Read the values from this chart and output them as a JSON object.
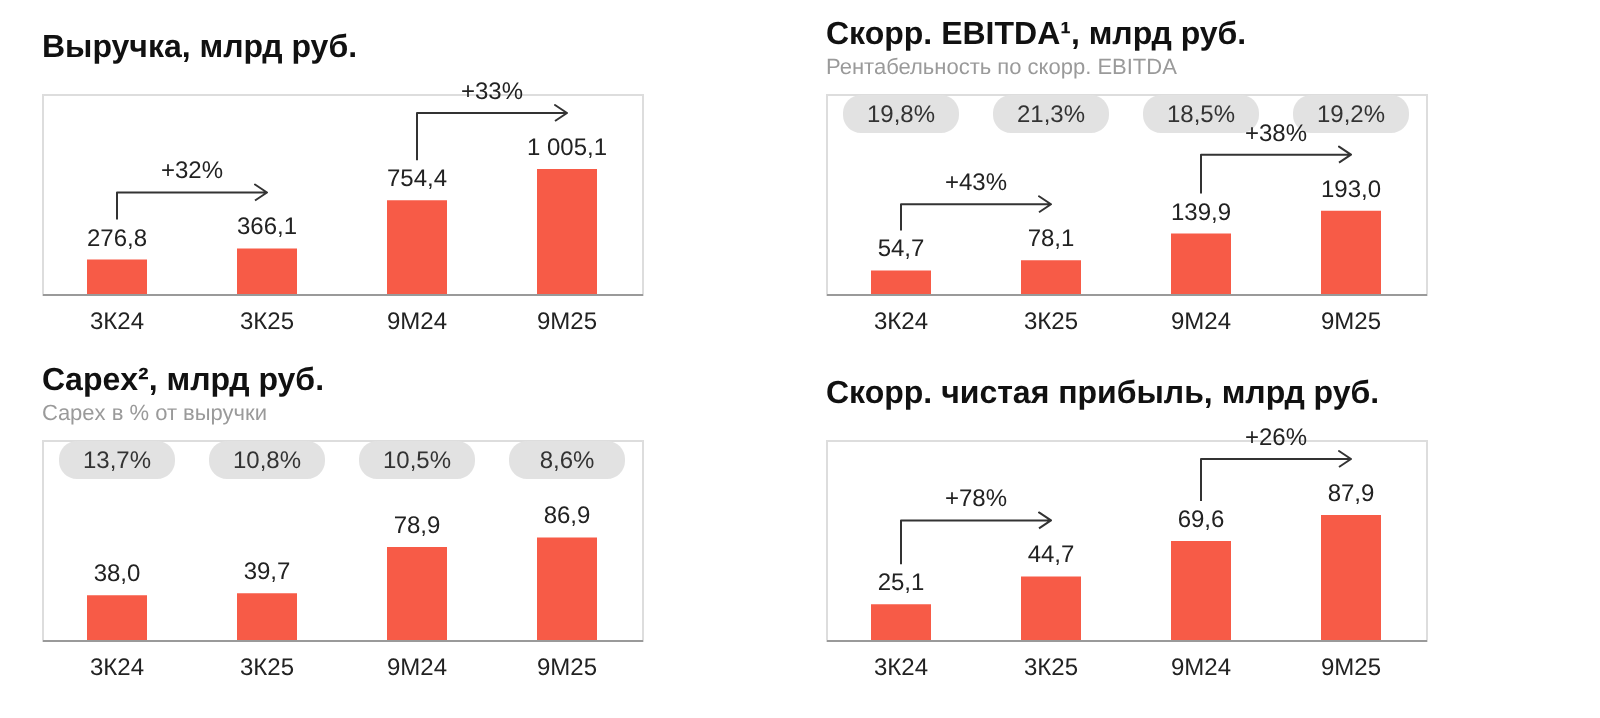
{
  "chart_data": [
    {
      "type": "bar",
      "title": "Выручка, млрд руб.",
      "categories": [
        "3К24",
        "3К25",
        "9М24",
        "9М25"
      ],
      "values": [
        276.8,
        366.1,
        754.4,
        1005.1
      ],
      "color": "#f75b47",
      "data_labels": true,
      "value_labels": [
        "276,8",
        "366,1",
        "754,4",
        "1 005,1"
      ],
      "annotations": [
        "+32%",
        "+33%"
      ]
    },
    {
      "type": "bar",
      "title": "Скорр. EBITDA¹, млрд руб.",
      "subtitle": "Рентабельность по скорр. EBITDA",
      "categories": [
        "3К24",
        "3К25",
        "9М24",
        "9М25"
      ],
      "values": [
        54.7,
        78.1,
        139.9,
        193.0
      ],
      "color": "#f75b47",
      "data_labels": true,
      "value_labels": [
        "54,7",
        "78,1",
        "139,9",
        "193,0"
      ],
      "annotations": [
        "19,8%",
        "21,3%",
        "18,5%",
        "19,2%",
        "+43%",
        "+38%"
      ]
    },
    {
      "type": "bar",
      "title": "Capex², млрд руб.",
      "subtitle": "Capex в % от выручки",
      "categories": [
        "3К24",
        "3К25",
        "9М24",
        "9М25"
      ],
      "values": [
        38.0,
        39.7,
        78.9,
        86.9
      ],
      "color": "#f75b47",
      "data_labels": true,
      "value_labels": [
        "38,0",
        "39,7",
        "78,9",
        "86,9"
      ],
      "annotations": [
        "13,7%",
        "10,8%",
        "10,5%",
        "8,6%"
      ]
    },
    {
      "type": "bar",
      "title": "Скорр. чистая прибыль, млрд руб.",
      "categories": [
        "3К24",
        "3К25",
        "9М24",
        "9М25"
      ],
      "values": [
        25.1,
        44.7,
        69.6,
        87.9
      ],
      "color": "#f75b47",
      "data_labels": true,
      "value_labels": [
        "25,1",
        "44,7",
        "69,6",
        "87,9"
      ],
      "annotations": [
        "+78%",
        "+26%"
      ]
    }
  ]
}
